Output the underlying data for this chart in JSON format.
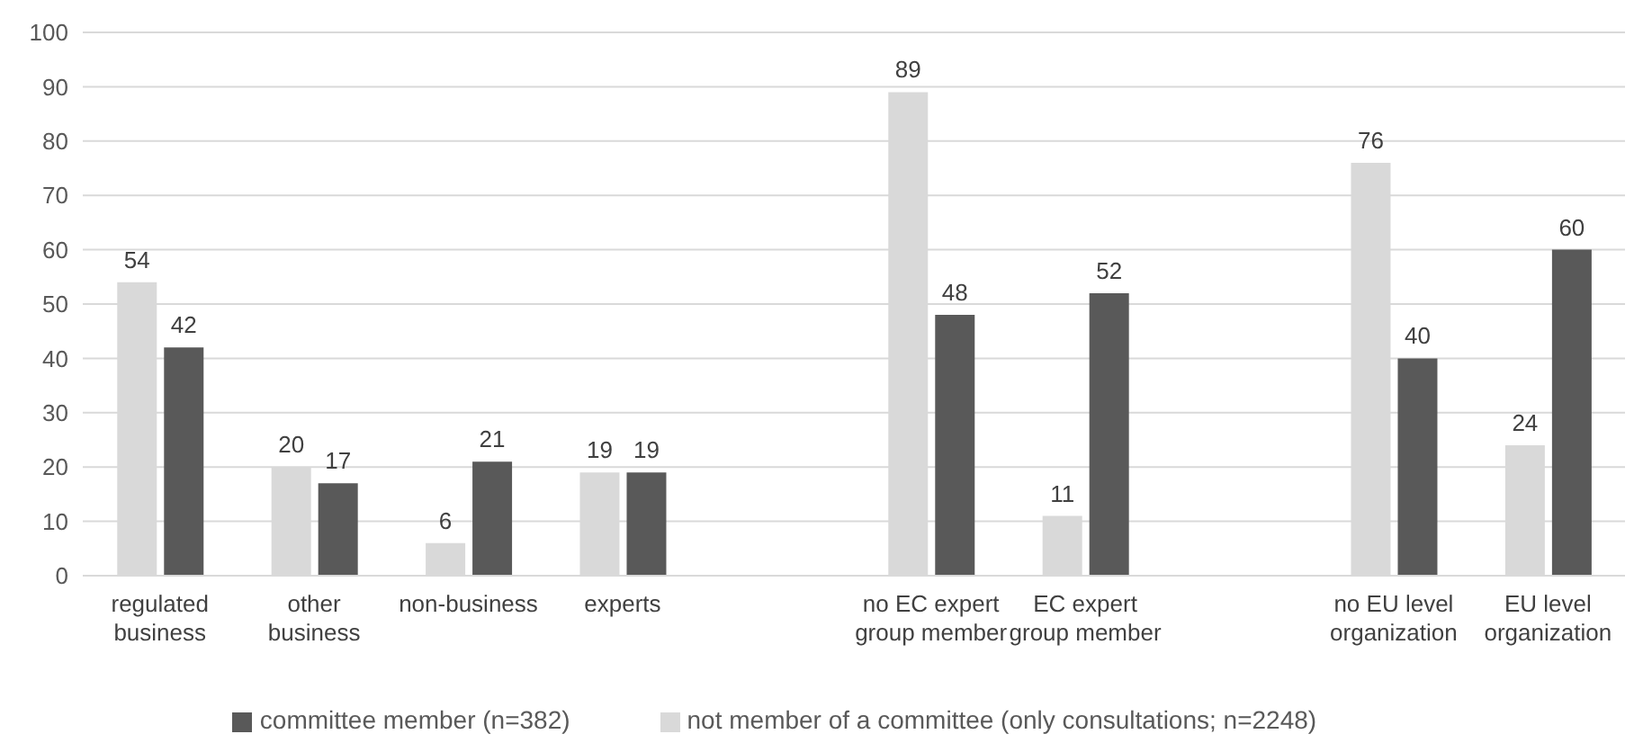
{
  "chart_data": {
    "type": "bar",
    "categories": [
      "regulated business",
      "other business",
      "non-business",
      "experts",
      null,
      "no EC expert group member",
      "EC expert group member",
      null,
      "no EU level organization",
      "EU level organization"
    ],
    "series": [
      {
        "name": "not member of a committee (only consultations; n=2248)",
        "color": "#d9d9d9",
        "values": [
          54,
          20,
          6,
          19,
          null,
          89,
          11,
          null,
          76,
          24
        ]
      },
      {
        "name": "committee member (n=382)",
        "color": "#595959",
        "values": [
          42,
          17,
          21,
          19,
          null,
          48,
          52,
          null,
          40,
          60
        ]
      }
    ],
    "ylim": [
      0,
      100
    ],
    "yticks": [
      0,
      10,
      20,
      30,
      40,
      50,
      60,
      70,
      80,
      90,
      100
    ],
    "grid": "y",
    "legend": "bottom",
    "data_labels": true
  }
}
